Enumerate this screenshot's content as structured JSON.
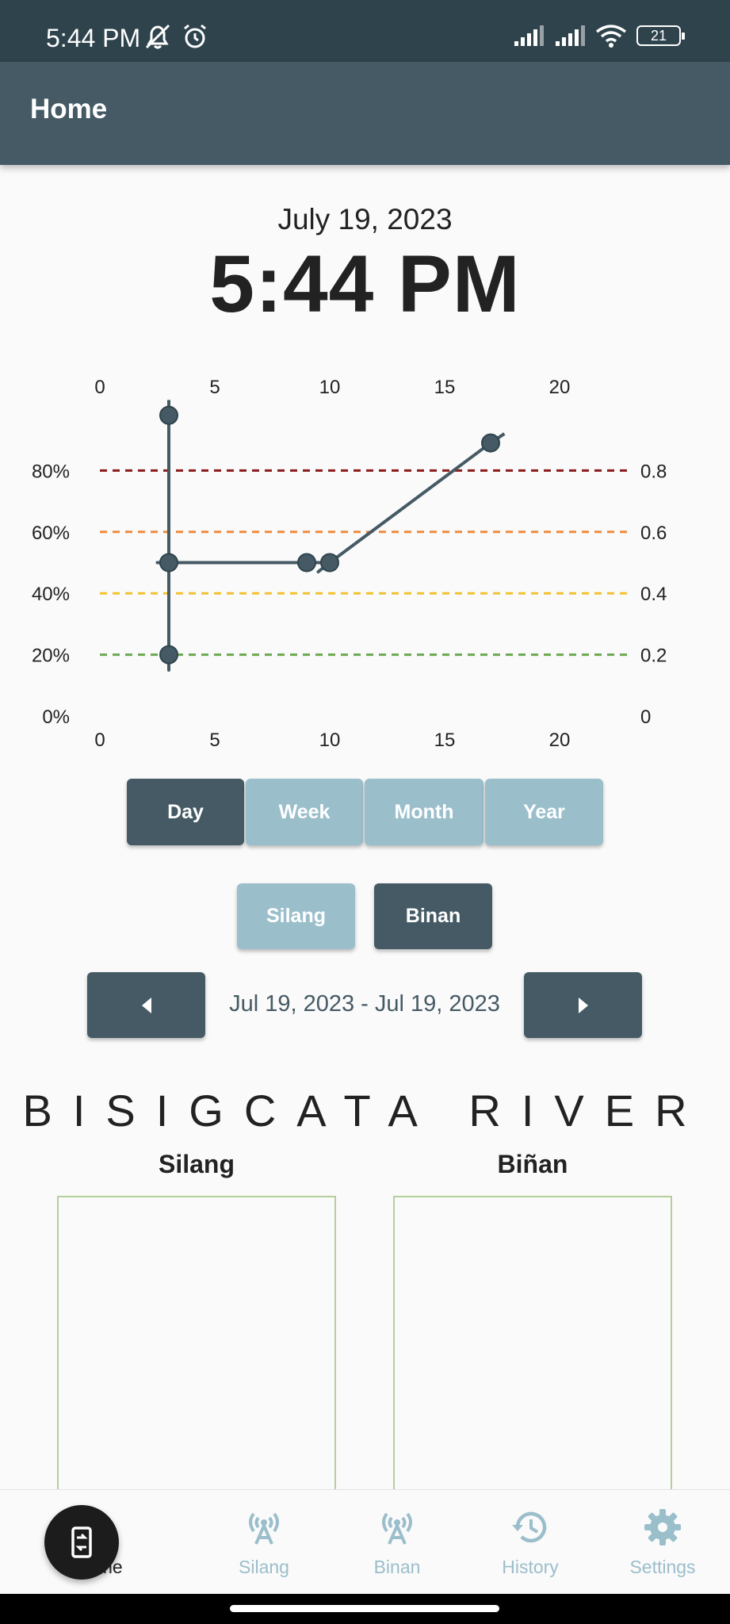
{
  "status_bar": {
    "time": "5:44 PM",
    "battery": "21",
    "icons": [
      "mute-bell-icon",
      "alarm-icon",
      "signal-icon",
      "signal-icon",
      "wifi-icon",
      "battery-icon"
    ]
  },
  "app_bar": {
    "title": "Home"
  },
  "clock": {
    "date": "July 19, 2023",
    "time": "5:44 PM"
  },
  "chart_data": {
    "type": "line",
    "x_ticks": [
      "0",
      "5",
      "10",
      "15",
      "20"
    ],
    "left_ticks": [
      "80%",
      "60%",
      "40%",
      "20%",
      "0%"
    ],
    "right_ticks": [
      "0.8",
      "0.6",
      "0.4",
      "0.2",
      "0"
    ],
    "xlim": [
      0,
      23
    ],
    "ylim": [
      0,
      1
    ],
    "points": [
      {
        "x": 3,
        "y": 0.98
      },
      {
        "x": 3,
        "y": 0.5
      },
      {
        "x": 3,
        "y": 0.2
      },
      {
        "x": 9,
        "y": 0.5
      },
      {
        "x": 10,
        "y": 0.5
      },
      {
        "x": 17,
        "y": 0.89
      }
    ],
    "thresholds": [
      {
        "y": 0.8,
        "color": "#8b1a1a"
      },
      {
        "y": 0.6,
        "color": "#f08a3c"
      },
      {
        "y": 0.4,
        "color": "#f2c12e"
      },
      {
        "y": 0.2,
        "color": "#6aa84f"
      }
    ],
    "line_color": "#455a64"
  },
  "period_buttons": [
    {
      "label": "Day",
      "active": true
    },
    {
      "label": "Week",
      "active": false
    },
    {
      "label": "Month",
      "active": false
    },
    {
      "label": "Year",
      "active": false
    }
  ],
  "location_buttons": [
    {
      "label": "Silang",
      "active": false
    },
    {
      "label": "Binan",
      "active": true
    }
  ],
  "date_range": "Jul 19, 2023 - Jul 19, 2023",
  "river": {
    "title": "BISIGCATA RIVER",
    "left_label": "Silang",
    "right_label": "Biñan"
  },
  "bottom_nav": [
    {
      "label": "Home",
      "icon": "home-icon",
      "active": true
    },
    {
      "label": "Silang",
      "icon": "antenna-icon",
      "active": false
    },
    {
      "label": "Binan",
      "icon": "antenna-icon",
      "active": false
    },
    {
      "label": "History",
      "icon": "history-icon",
      "active": false
    },
    {
      "label": "Settings",
      "icon": "gear-icon",
      "active": false
    }
  ],
  "fab": {
    "icon": "swap-device-icon"
  }
}
